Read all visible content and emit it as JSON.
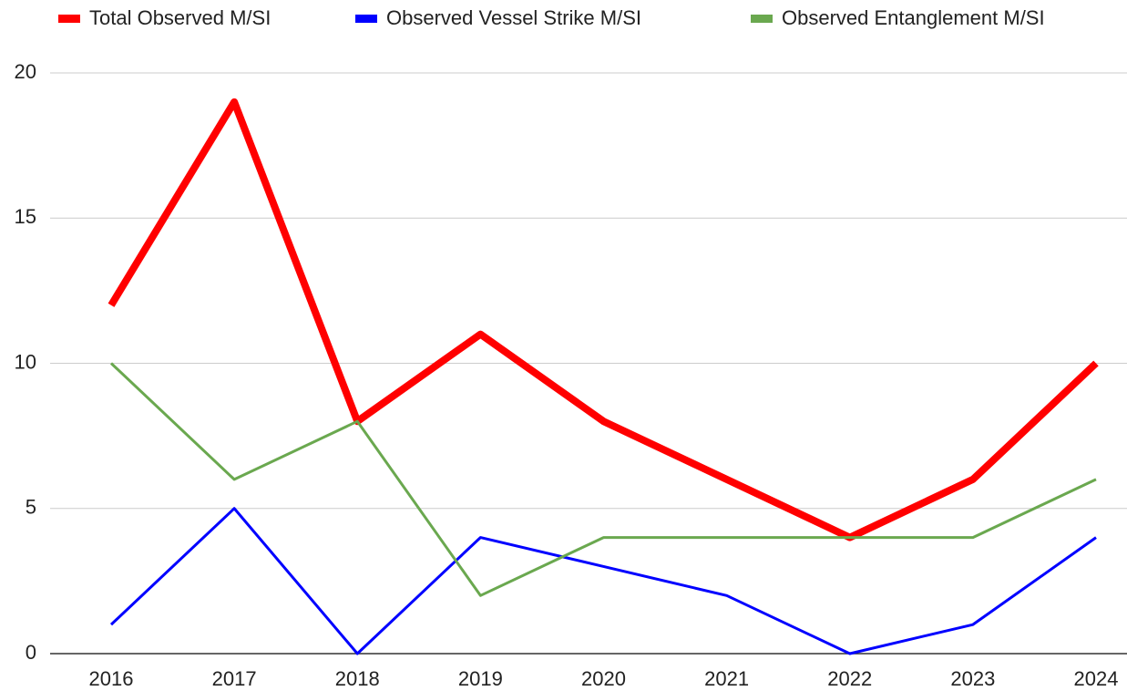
{
  "chart_data": {
    "type": "line",
    "categories": [
      "2016",
      "2017",
      "2018",
      "2019",
      "2020",
      "2021",
      "2022",
      "2023",
      "2024"
    ],
    "series": [
      {
        "name": "Total Observed M/SI",
        "color": "#ff0000",
        "values": [
          12,
          19,
          8,
          11,
          8,
          6,
          4,
          6,
          10
        ]
      },
      {
        "name": "Observed Vessel Strike M/SI",
        "color": "#0000ff",
        "values": [
          1,
          5,
          0,
          4,
          3,
          2,
          0,
          1,
          4
        ]
      },
      {
        "name": "Observed Entanglement M/SI",
        "color": "#6aa84f",
        "values": [
          10,
          6,
          8,
          2,
          4,
          4,
          4,
          4,
          6
        ]
      }
    ],
    "ylim": [
      0,
      20
    ],
    "yticks": [
      0,
      5,
      10,
      15,
      20
    ],
    "grid": true,
    "legend": "top"
  }
}
